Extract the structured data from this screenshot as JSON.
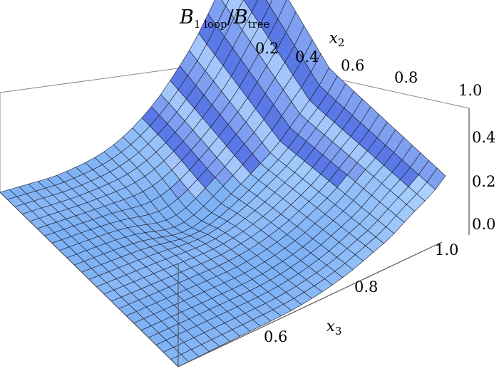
{
  "chart_data": {
    "type": "surface3d",
    "title": {
      "main": "B",
      "sub1": "1 loop",
      "slash": "/",
      "main2": "B",
      "sub2": "tree"
    },
    "x2_axis": {
      "label_main": "x",
      "label_sub": "2",
      "ticks": [
        "0.2",
        "0.4",
        "0.6",
        "0.8",
        "1.0"
      ]
    },
    "x3_axis": {
      "label_main": "x",
      "label_sub": "3",
      "ticks": [
        "0.6",
        "0.8",
        "1.0"
      ]
    },
    "z_axis": {
      "ticks": [
        "0.0",
        "0.2",
        "0.4"
      ]
    },
    "x2_range": [
      0.0,
      1.0
    ],
    "x3_range": [
      0.5,
      1.0
    ],
    "z_range": [
      -0.1,
      0.5
    ],
    "grid_resolution": [
      26,
      24
    ],
    "surface_color": "#7fb2f5",
    "surface_color_light": "#b7d9ff",
    "surface_color_dark": "#5a78e6",
    "box_line_color": "#888888",
    "mesh_line_color": "#1a1a2a"
  }
}
